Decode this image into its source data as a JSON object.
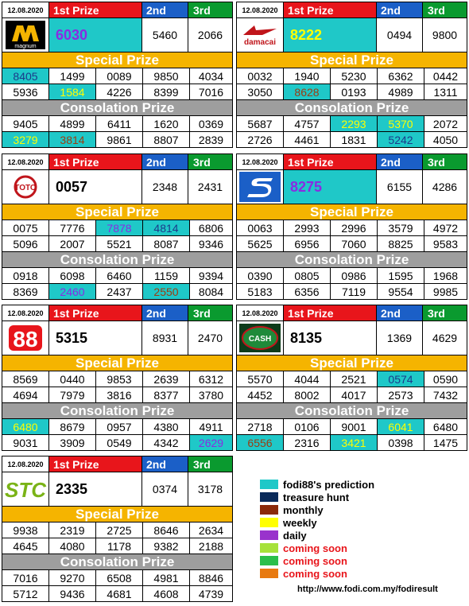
{
  "colors": {
    "cyan": "#1fc8c8",
    "navy": "#0a2a5a",
    "brown": "#8b2a0a",
    "yellow": "#ffff00",
    "purple": "#9933cc",
    "lime": "#a6e23a",
    "green": "#2bbf4a",
    "orange": "#e87a10"
  },
  "panels": [
    {
      "id": "magnum",
      "date": "12.08.2020",
      "h1": "1st Prize",
      "h2": "2nd",
      "h3": "3rd",
      "logo_icon": "magnum-logo",
      "logo_text": "magnum",
      "first": "6030",
      "second": "5460",
      "third": "2066",
      "first_style": "cyan-purple",
      "special_label": "Special Prize",
      "cons_label": "Consolation Prize",
      "special": [
        [
          "8405",
          "1499",
          "0089",
          "9850",
          "4034"
        ],
        [
          "5936",
          "1584",
          "4226",
          "8399",
          "7016"
        ]
      ],
      "cons": [
        [
          "9405",
          "4899",
          "6411",
          "1620",
          "0369"
        ],
        [
          "3279",
          "3814",
          "9861",
          "8807",
          "2839"
        ]
      ]
    },
    {
      "id": "damacai",
      "date": "12.08.2020",
      "h1": "1st Prize",
      "h2": "2nd",
      "h3": "3rd",
      "logo_icon": "damacai-logo",
      "logo_text": "damacai",
      "first": "8222",
      "second": "0494",
      "third": "9800",
      "first_style": "cyan-yellow",
      "special_label": "Special Prize",
      "cons_label": "Consolation Prize",
      "special": [
        [
          "0032",
          "1940",
          "5230",
          "6362",
          "0442"
        ],
        [
          "3050",
          "8628",
          "0193",
          "4989",
          "1311"
        ]
      ],
      "cons": [
        [
          "5687",
          "4757",
          "2293",
          "5370",
          "2072"
        ],
        [
          "2726",
          "4461",
          "1831",
          "5242",
          "4050"
        ]
      ]
    },
    {
      "id": "toto",
      "date": "12.08.2020",
      "h1": "1st Prize",
      "h2": "2nd",
      "h3": "3rd",
      "logo_icon": "toto-logo",
      "logo_text": "TOTO",
      "first": "0057",
      "second": "2348",
      "third": "2431",
      "first_style": "plain",
      "special_label": "Special Prize",
      "cons_label": "Consolation Prize",
      "special": [
        [
          "0075",
          "7776",
          "7878",
          "4814",
          "6806"
        ],
        [
          "5096",
          "2007",
          "5521",
          "8087",
          "9346"
        ]
      ],
      "cons": [
        [
          "0918",
          "6098",
          "6460",
          "1159",
          "9394"
        ],
        [
          "8369",
          "2460",
          "2437",
          "2550",
          "8084"
        ]
      ]
    },
    {
      "id": "sabah",
      "date": "12.08.2020",
      "h1": "1st Prize",
      "h2": "2nd",
      "h3": "3rd",
      "logo_icon": "sabah-logo",
      "logo_text": "S",
      "first": "8275",
      "second": "6155",
      "third": "4286",
      "first_style": "cyan-purple",
      "special_label": "Special Prize",
      "cons_label": "Consolation Prize",
      "special": [
        [
          "0063",
          "2993",
          "2996",
          "3579",
          "4972"
        ],
        [
          "5625",
          "6956",
          "7060",
          "8825",
          "9583"
        ]
      ],
      "cons": [
        [
          "0390",
          "0805",
          "0986",
          "1595",
          "1968"
        ],
        [
          "5183",
          "6356",
          "7119",
          "9554",
          "9985"
        ]
      ]
    },
    {
      "id": "sandakan",
      "date": "12.08.2020",
      "h1": "1st Prize",
      "h2": "2nd",
      "h3": "3rd",
      "logo_icon": "88-logo",
      "logo_text": "88",
      "first": "5315",
      "second": "8931",
      "third": "2470",
      "first_style": "plain",
      "special_label": "Special Prize",
      "cons_label": "Consolation Prize",
      "special": [
        [
          "8569",
          "0440",
          "9853",
          "2639",
          "6312"
        ],
        [
          "4694",
          "7979",
          "3816",
          "8377",
          "3780"
        ]
      ],
      "cons": [
        [
          "6480",
          "8679",
          "0957",
          "4380",
          "4911"
        ],
        [
          "9031",
          "3909",
          "0549",
          "4342",
          "2629"
        ]
      ]
    },
    {
      "id": "cash",
      "date": "12.08.2020",
      "h1": "1st Prize",
      "h2": "2nd",
      "h3": "3rd",
      "logo_icon": "cash-logo",
      "logo_text": "CASH",
      "first": "8135",
      "second": "1369",
      "third": "4629",
      "first_style": "plain",
      "special_label": "Special Prize",
      "cons_label": "Consolation Prize",
      "special": [
        [
          "5570",
          "4044",
          "2521",
          "0574",
          "0590"
        ],
        [
          "4452",
          "8002",
          "4017",
          "2573",
          "7432"
        ]
      ],
      "cons": [
        [
          "2718",
          "0106",
          "9001",
          "6041",
          "6480"
        ],
        [
          "6556",
          "2316",
          "3421",
          "0398",
          "1475"
        ]
      ]
    },
    {
      "id": "stc",
      "date": "12.08.2020",
      "h1": "1st Prize",
      "h2": "2nd",
      "h3": "3rd",
      "logo_icon": "stc-logo",
      "logo_text": "STC",
      "first": "2335",
      "second": "0374",
      "third": "3178",
      "first_style": "plain",
      "special_label": "Special Prize",
      "cons_label": "Consolation Prize",
      "special": [
        [
          "9938",
          "2319",
          "2725",
          "8646",
          "2634"
        ],
        [
          "4645",
          "4080",
          "1178",
          "9382",
          "2188"
        ]
      ],
      "cons": [
        [
          "7016",
          "9270",
          "6508",
          "4981",
          "8846"
        ],
        [
          "5712",
          "9436",
          "4681",
          "4608",
          "4739"
        ]
      ]
    }
  ],
  "legend": [
    {
      "label": "fodi88's prediction",
      "color": "#1fc8c8",
      "text_color": "#000"
    },
    {
      "label": "treasure hunt",
      "color": "#0a2a5a",
      "text_color": "#000"
    },
    {
      "label": "monthly",
      "color": "#8b2a0a",
      "text_color": "#000"
    },
    {
      "label": "weekly",
      "color": "#ffff00",
      "text_color": "#000"
    },
    {
      "label": "daily",
      "color": "#9933cc",
      "text_color": "#000"
    },
    {
      "label": "coming soon",
      "color": "#a6e23a",
      "text_color": "#e8151b"
    },
    {
      "label": "coming soon",
      "color": "#2bbf4a",
      "text_color": "#e8151b"
    },
    {
      "label": "coming soon",
      "color": "#e87a10",
      "text_color": "#e8151b"
    }
  ],
  "url": "http://www.fodi.com.my/fodiresult"
}
